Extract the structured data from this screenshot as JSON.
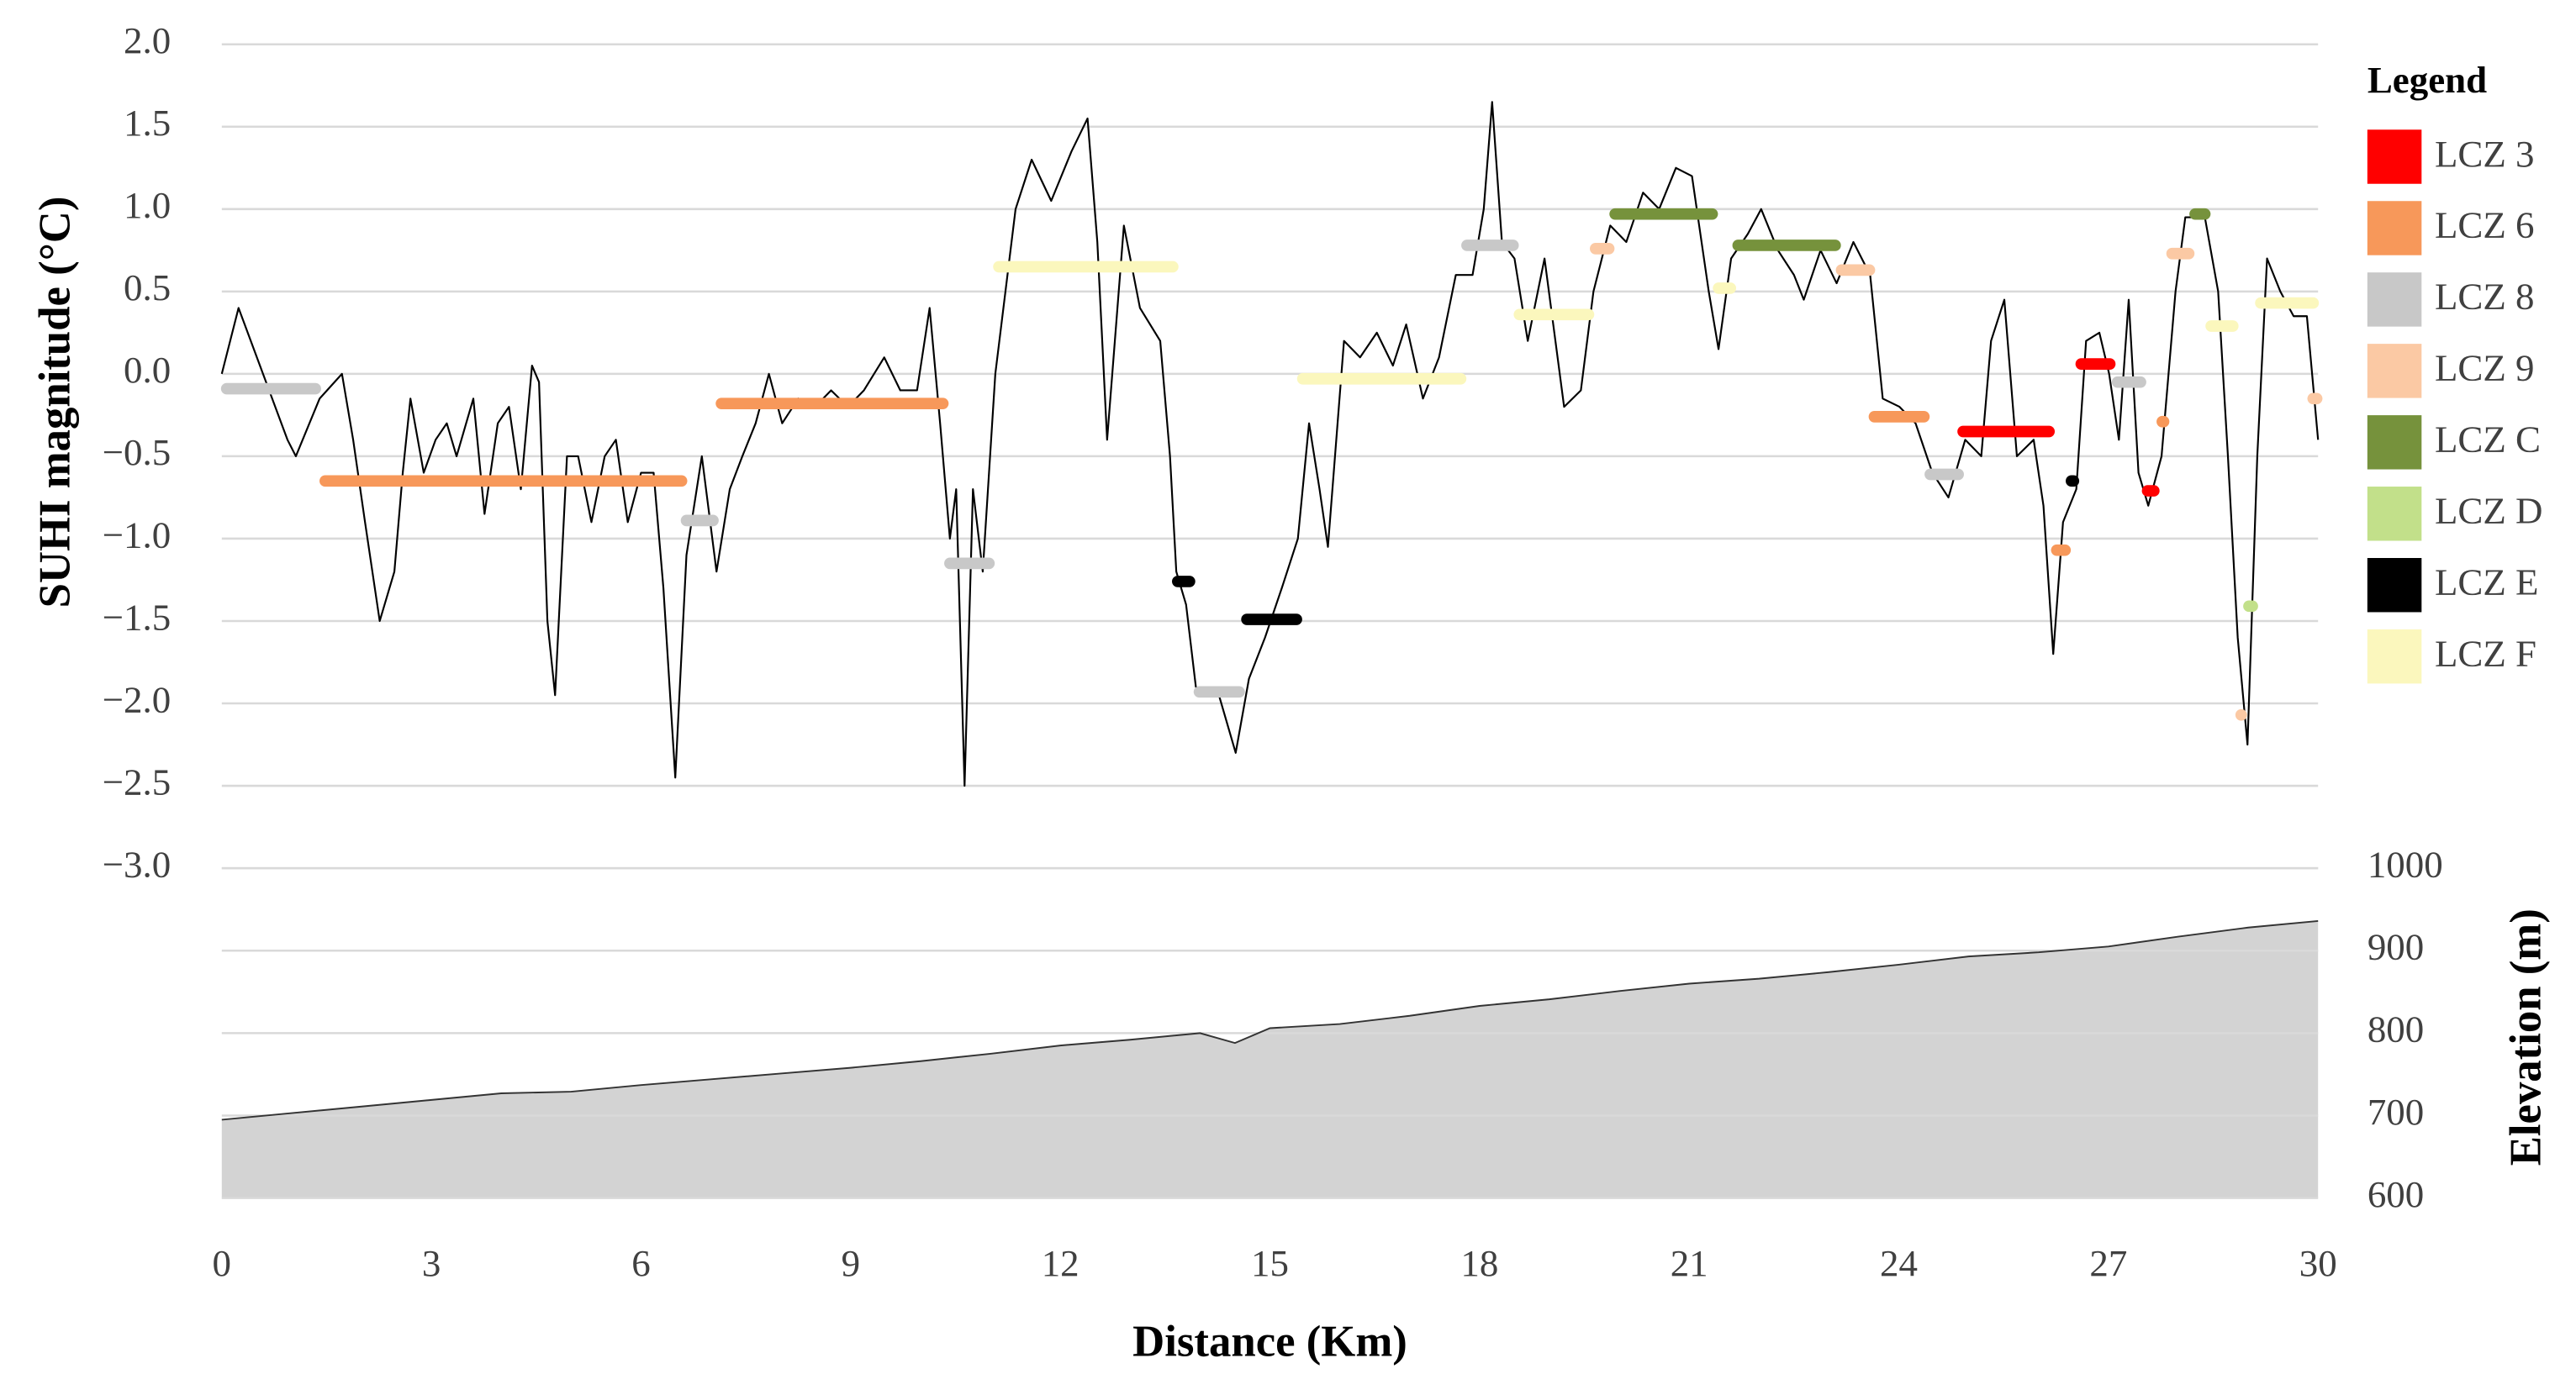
{
  "chart_data": {
    "type": "line",
    "xlabel": "Distance (Km)",
    "ylabel": "SUHI magnitude (°C)",
    "y2label": "Elevation (m)",
    "legend_title": "Legend",
    "grid": true,
    "xlim": [
      0,
      30
    ],
    "xticks": [
      0,
      3,
      6,
      9,
      12,
      15,
      18,
      21,
      24,
      27,
      30
    ],
    "ylim": [
      -3,
      2
    ],
    "yticks": [
      {
        "value": 2,
        "label": "2.0"
      },
      {
        "value": 1.5,
        "label": "1.5"
      },
      {
        "value": 1,
        "label": "1.0"
      },
      {
        "value": 0.5,
        "label": "0.5"
      },
      {
        "value": 0,
        "label": "0.0"
      },
      {
        "value": -0.5,
        "label": "−0.5"
      },
      {
        "value": -1,
        "label": "−1.0"
      },
      {
        "value": -1.5,
        "label": "−1.5"
      },
      {
        "value": -2,
        "label": "−2.0"
      },
      {
        "value": -2.5,
        "label": "−2.5"
      },
      {
        "value": -3,
        "label": "−3.0"
      }
    ],
    "y2lim": [
      600,
      1000
    ],
    "y2ticks": [
      600,
      700,
      800,
      900,
      1000
    ],
    "suhi": {
      "color": "#000000",
      "x": [
        0,
        0.24,
        0.94,
        1.06,
        1.4,
        1.72,
        1.88,
        2.05,
        2.26,
        2.47,
        2.59,
        2.7,
        2.89,
        3.06,
        3.22,
        3.36,
        3.6,
        3.76,
        3.95,
        4.11,
        4.28,
        4.44,
        4.54,
        4.66,
        4.77,
        4.94,
        5.1,
        5.29,
        5.48,
        5.64,
        5.81,
        6.0,
        6.18,
        6.32,
        6.49,
        6.65,
        6.87,
        7.08,
        7.27,
        7.45,
        7.64,
        7.83,
        8.02,
        8.25,
        8.49,
        8.72,
        8.96,
        9.19,
        9.48,
        9.71,
        9.95,
        10.13,
        10.28,
        10.42,
        10.51,
        10.63,
        10.75,
        10.89,
        11.07,
        11.36,
        11.59,
        11.87,
        12.16,
        12.39,
        12.53,
        12.67,
        12.91,
        13.14,
        13.43,
        13.57,
        13.66,
        13.8,
        13.94,
        14.27,
        14.51,
        14.7,
        14.93,
        15.17,
        15.4,
        15.56,
        15.71,
        15.83,
        16.06,
        16.29,
        16.53,
        16.76,
        16.95,
        17.19,
        17.42,
        17.66,
        17.9,
        18.06,
        18.18,
        18.32,
        18.5,
        18.69,
        18.93,
        19.21,
        19.45,
        19.63,
        19.87,
        20.1,
        20.34,
        20.57,
        20.81,
        21.04,
        21.28,
        21.42,
        21.6,
        21.84,
        22.03,
        22.27,
        22.5,
        22.64,
        22.88,
        23.11,
        23.35,
        23.59,
        23.77,
        24.01,
        24.24,
        24.48,
        24.71,
        24.95,
        25.18,
        25.32,
        25.51,
        25.69,
        25.93,
        26.07,
        26.21,
        26.35,
        26.54,
        26.68,
        26.87,
        27.01,
        27.15,
        27.29,
        27.43,
        27.57,
        27.76,
        27.96,
        28.1,
        28.38,
        28.57,
        28.71,
        28.85,
        28.99,
        29.13,
        29.27,
        29.46,
        29.65,
        29.84,
        30
      ],
      "values": [
        0,
        0.4,
        -0.4,
        -0.5,
        -0.15,
        0,
        -0.4,
        -0.9,
        -1.5,
        -1.2,
        -0.6,
        -0.15,
        -0.6,
        -0.4,
        -0.3,
        -0.5,
        -0.15,
        -0.85,
        -0.3,
        -0.2,
        -0.7,
        0.05,
        -0.05,
        -1.5,
        -1.95,
        -0.5,
        -0.5,
        -0.9,
        -0.5,
        -0.4,
        -0.9,
        -0.6,
        -0.6,
        -1.3,
        -2.45,
        -1.1,
        -0.5,
        -1.2,
        -0.7,
        -0.5,
        -0.3,
        0,
        -0.3,
        -0.15,
        -0.2,
        -0.1,
        -0.2,
        -0.1,
        0.1,
        -0.1,
        -0.1,
        0.4,
        -0.3,
        -1,
        -0.7,
        -2.5,
        -0.7,
        -1.2,
        0,
        1,
        1.3,
        1.05,
        1.35,
        1.55,
        0.8,
        -0.4,
        0.9,
        0.4,
        0.2,
        -0.5,
        -1.2,
        -1.4,
        -1.9,
        -1.95,
        -2.3,
        -1.85,
        -1.6,
        -1.3,
        -1,
        -0.3,
        -0.7,
        -1.05,
        0.2,
        0.1,
        0.25,
        0.05,
        0.3,
        -0.15,
        0.1,
        0.6,
        0.6,
        1,
        1.65,
        0.8,
        0.7,
        0.2,
        0.7,
        -0.2,
        -0.1,
        0.5,
        0.9,
        0.8,
        1.1,
        1,
        1.25,
        1.2,
        0.5,
        0.15,
        0.7,
        0.85,
        1,
        0.75,
        0.6,
        0.45,
        0.75,
        0.55,
        0.8,
        0.6,
        -0.15,
        -0.2,
        -0.3,
        -0.6,
        -0.75,
        -0.4,
        -0.5,
        0.2,
        0.45,
        -0.5,
        -0.4,
        -0.8,
        -1.7,
        -0.9,
        -0.7,
        0.2,
        0.25,
        0,
        -0.4,
        0.45,
        -0.6,
        -0.8,
        -0.5,
        0.5,
        0.95,
        0.95,
        0.5,
        -0.5,
        -1.6,
        -2.25,
        -0.5,
        0.7,
        0.5,
        0.35,
        0.35,
        -0.4
      ]
    },
    "elevation": {
      "axis": "y2",
      "color": "#d3d3d3",
      "x": [
        0,
        1,
        2,
        3,
        4,
        5,
        6,
        7,
        8,
        9,
        10,
        11,
        12,
        13,
        14,
        14.5,
        15,
        16,
        17,
        18,
        19,
        20,
        21,
        22,
        23,
        24,
        25,
        26,
        27,
        28,
        29,
        30
      ],
      "values": [
        695,
        703,
        711,
        719,
        727,
        729,
        737,
        744,
        751,
        758,
        766,
        775,
        785,
        792,
        800,
        788,
        806,
        811,
        821,
        833,
        841,
        851,
        860,
        866,
        874,
        883,
        893,
        898,
        905,
        917,
        928,
        936
      ]
    },
    "lcz": [
      {
        "name": "LCZ 3",
        "color": "#ff0000",
        "x_start": [
          24.85,
          26.54,
          27.49
        ],
        "x_end": [
          26.22,
          27.09,
          27.72
        ],
        "values": [
          -0.35,
          0.06,
          -0.71
        ]
      },
      {
        "name": "LCZ 6",
        "color": "#f7985a",
        "x_start": [
          1.41,
          7.08,
          23.58,
          26.19,
          27.7
        ],
        "x_end": [
          6.65,
          10.39,
          24.43,
          26.45,
          27.86
        ],
        "values": [
          -0.65,
          -0.18,
          -0.26,
          -1.07,
          -0.29
        ]
      },
      {
        "name": "LCZ 8",
        "color": "#c8c8c8",
        "x_start": [
          0,
          6.58,
          10.35,
          13.92,
          17.75,
          24.38,
          27.06
        ],
        "x_end": [
          1.41,
          7.1,
          11.05,
          14.63,
          18.55,
          24.92,
          27.53
        ],
        "values": [
          -0.09,
          -0.89,
          -1.15,
          -1.93,
          0.78,
          -0.61,
          -0.05
        ]
      },
      {
        "name": "LCZ 9",
        "color": "#fbc9a4",
        "x_start": [
          19.59,
          23.11,
          27.84,
          28.83,
          29.91
        ],
        "x_end": [
          19.92,
          23.65,
          28.22,
          28.97,
          30
        ],
        "values": [
          0.76,
          0.63,
          0.73,
          -2.07,
          -0.15
        ]
      },
      {
        "name": "LCZ C",
        "color": "#76923c",
        "x_start": [
          19.87,
          21.63,
          28.17
        ],
        "x_end": [
          21.4,
          23.16,
          28.45
        ],
        "values": [
          0.97,
          0.78,
          0.97
        ]
      },
      {
        "name": "LCZ D",
        "color": "#c2e08a",
        "x_start": [
          28.94
        ],
        "x_end": [
          29.13
        ],
        "values": [
          -1.41
        ]
      },
      {
        "name": "LCZ E",
        "color": "#000000",
        "x_start": [
          13.61,
          14.6,
          26.4
        ],
        "x_end": [
          13.92,
          15.45,
          26.57
        ],
        "values": [
          -1.26,
          -1.49,
          -0.65
        ]
      },
      {
        "name": "LCZ F",
        "color": "#fbf7bd",
        "x_start": [
          11.05,
          15.4,
          18.5,
          21.35,
          28.4,
          29.11
        ],
        "x_end": [
          13.68,
          17.8,
          19.63,
          21.66,
          28.85,
          30
        ],
        "values": [
          0.65,
          -0.03,
          0.36,
          0.52,
          0.29,
          0.43
        ]
      }
    ]
  }
}
